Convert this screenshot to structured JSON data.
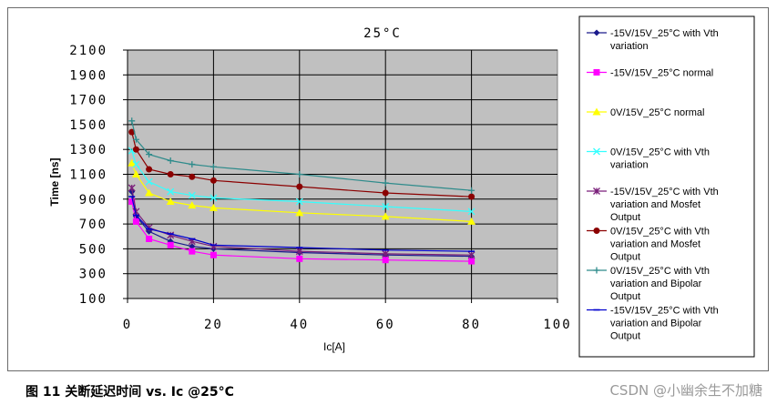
{
  "chart_data": {
    "type": "line",
    "title": "25°C",
    "xlabel": "Ic[A]",
    "ylabel": "Time [ns]",
    "xlim": [
      0,
      100
    ],
    "ylim": [
      100,
      2100
    ],
    "x_ticks": [
      "0",
      "20",
      "40",
      "60",
      "80",
      "100"
    ],
    "y_ticks": [
      "100",
      "300",
      "500",
      "700",
      "900",
      "1100",
      "1300",
      "1500",
      "1700",
      "1900",
      "2100"
    ],
    "grid": true,
    "legend_position": "right",
    "series": [
      {
        "name": "-15V/15V_25°C with Vth variation",
        "color": "#1a1a8c",
        "marker": "diamond",
        "x": [
          1,
          2,
          5,
          10,
          15,
          20,
          40,
          60,
          80
        ],
        "y": [
          960,
          760,
          640,
          560,
          520,
          500,
          470,
          450,
          440
        ]
      },
      {
        "name": "-15V/15V_25°C normal",
        "color": "#ff00ff",
        "marker": "square",
        "x": [
          1,
          2,
          5,
          10,
          15,
          20,
          40,
          60,
          80
        ],
        "y": [
          880,
          720,
          580,
          530,
          480,
          450,
          420,
          410,
          400
        ]
      },
      {
        "name": "0V/15V_25°C normal",
        "color": "#ffff00",
        "marker": "triangle",
        "x": [
          1,
          2,
          5,
          10,
          15,
          20,
          40,
          60,
          80
        ],
        "y": [
          1190,
          1100,
          950,
          880,
          850,
          830,
          790,
          760,
          720
        ]
      },
      {
        "name": "0V/15V_25°C with Vth variation",
        "color": "#33ffff",
        "marker": "x",
        "x": [
          1,
          2,
          5,
          10,
          15,
          20,
          40,
          60,
          80
        ],
        "y": [
          1290,
          1180,
          1040,
          960,
          930,
          910,
          880,
          840,
          800
        ]
      },
      {
        "name": "-15V/15V_25°C with Vth variation and Mosfet Output",
        "color": "#7a1f7a",
        "marker": "star",
        "x": [
          1,
          2,
          5,
          10,
          15,
          20,
          40,
          60,
          80
        ],
        "y": [
          990,
          800,
          670,
          610,
          560,
          520,
          480,
          460,
          450
        ]
      },
      {
        "name": "0V/15V_25°C with Vth variation and Mosfet Output",
        "color": "#8b0000",
        "marker": "circle",
        "x": [
          1,
          2,
          5,
          10,
          15,
          20,
          40,
          60,
          80
        ],
        "y": [
          1440,
          1300,
          1140,
          1100,
          1080,
          1050,
          1000,
          950,
          920
        ]
      },
      {
        "name": "0V/15V_25°C with Vth variation and Bipolar Output",
        "color": "#2e8b8b",
        "marker": "plus",
        "x": [
          1,
          2,
          5,
          10,
          15,
          20,
          40,
          60,
          80
        ],
        "y": [
          1530,
          1380,
          1260,
          1210,
          1180,
          1160,
          1100,
          1030,
          970
        ]
      },
      {
        "name": "-15V/15V_25°C with Vth variation and Bipolar Output",
        "color": "#0000cd",
        "marker": "dash",
        "x": [
          1,
          2,
          5,
          10,
          15,
          20,
          40,
          60,
          80
        ],
        "y": [
          920,
          770,
          660,
          620,
          580,
          530,
          510,
          490,
          480
        ]
      }
    ]
  },
  "caption": "图 11   关断延迟时间 vs. Ic @25°C",
  "watermark": "CSDN @小幽余生不加糖"
}
